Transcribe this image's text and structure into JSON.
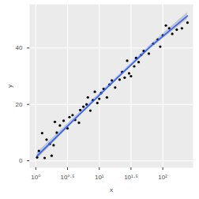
{
  "chart_data": {
    "type": "scatter",
    "x_label": "x",
    "y_label": "y",
    "log": "x",
    "grid": true,
    "color": "#000000",
    "x": [
      1.05,
      1.12,
      1.26,
      1.38,
      1.48,
      1.66,
      1.78,
      1.91,
      2.0,
      2.14,
      2.4,
      2.75,
      3.16,
      3.39,
      3.8,
      4.17,
      4.79,
      5.01,
      5.62,
      6.31,
      6.61,
      7.24,
      7.94,
      8.51,
      9.33,
      10.0,
      10.7,
      11.7,
      13.2,
      14.5,
      15.8,
      17.8,
      20.9,
      22.9,
      25.1,
      27.5,
      29.5,
      31.6,
      35.5,
      38.0,
      41.7,
      45.7,
      50.1,
      60.3,
      70.8,
      83.2,
      91.2,
      100,
      112,
      126,
      141,
      166,
      200,
      245
    ],
    "values": [
      1.2,
      3.5,
      9.8,
      1.0,
      7.5,
      6.0,
      1.8,
      5.5,
      13.8,
      10.0,
      12.5,
      14.2,
      11.5,
      15.5,
      16.2,
      14.5,
      13.5,
      18.0,
      19.2,
      20.0,
      22.5,
      17.8,
      21.5,
      24.5,
      20.5,
      22.0,
      24.0,
      25.5,
      22.5,
      27.0,
      28.5,
      26.0,
      28.8,
      31.5,
      29.5,
      35.5,
      31.0,
      30.0,
      33.5,
      36.5,
      35.0,
      37.5,
      39.0,
      38.0,
      41.5,
      43.0,
      40.5,
      44.5,
      48.0,
      47.0,
      45.0,
      46.5,
      47.0,
      49.0
    ],
    "fit": {
      "type": "line",
      "color": "#3366FF",
      "x": [
        1.05,
        3.98,
        15.8,
        63.1,
        245
      ],
      "values": [
        1.7,
        14.5,
        27.6,
        40.4,
        51.4
      ],
      "lower": [
        0.5,
        13.8,
        27.1,
        39.7,
        50.2
      ],
      "upper": [
        2.9,
        15.2,
        28.1,
        41.1,
        52.6
      ]
    },
    "xlim": [
      0.8,
      300
    ],
    "ylim": [
      -2.5,
      55.5
    ],
    "xticks": [
      {
        "value": 1,
        "label": "10⁰"
      },
      {
        "value": 3.1623,
        "label": "10⁰·⁵"
      },
      {
        "value": 10,
        "label": "10¹"
      },
      {
        "value": 31.623,
        "label": "10¹·⁵"
      },
      {
        "value": 100,
        "label": "10²"
      }
    ],
    "yticks": [
      0,
      20,
      40
    ]
  }
}
